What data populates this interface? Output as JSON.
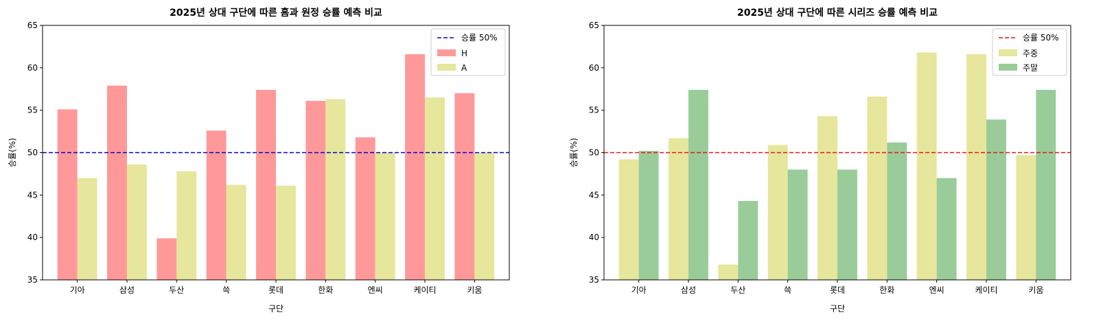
{
  "chart_data": [
    {
      "type": "bar",
      "title": "2025년 상대 구단에 따른 홈과 원정 승률 예측 비교",
      "xlabel": "구단",
      "ylabel": "승률(%)",
      "ylim": [
        35,
        65
      ],
      "yticks": [
        35,
        40,
        45,
        50,
        55,
        60,
        65
      ],
      "categories": [
        "기아",
        "삼성",
        "두산",
        "쓱",
        "롯데",
        "한화",
        "엔씨",
        "케이티",
        "키움"
      ],
      "series": [
        {
          "name": "H",
          "color": "#ff9999",
          "values": [
            55.1,
            57.9,
            39.9,
            52.6,
            57.4,
            56.1,
            51.8,
            61.6,
            57.0
          ]
        },
        {
          "name": "A",
          "color": "#e6e69c",
          "values": [
            47.0,
            48.6,
            47.8,
            46.2,
            46.1,
            56.3,
            50.0,
            56.5,
            50.0
          ]
        }
      ],
      "reference_line": {
        "label": "승률 50%",
        "value": 50,
        "color": "#0000cc",
        "style": "dashed"
      },
      "legend": "top-right",
      "grid": false
    },
    {
      "type": "bar",
      "title": "2025년 상대 구단에 따른 시리즈 승률 예측 비교",
      "xlabel": "구단",
      "ylabel": "승률(%)",
      "ylim": [
        35,
        65
      ],
      "yticks": [
        35,
        40,
        45,
        50,
        55,
        60,
        65
      ],
      "categories": [
        "기아",
        "삼성",
        "두산",
        "쓱",
        "롯데",
        "한화",
        "엔씨",
        "케이티",
        "키움"
      ],
      "series": [
        {
          "name": "주중",
          "color": "#e6e69c",
          "values": [
            49.2,
            51.7,
            36.8,
            50.9,
            54.3,
            56.6,
            61.8,
            61.6,
            49.7
          ]
        },
        {
          "name": "주말",
          "color": "#99cc99",
          "values": [
            50.2,
            57.4,
            44.3,
            48.0,
            48.0,
            51.2,
            47.0,
            53.9,
            57.4
          ]
        }
      ],
      "reference_line": {
        "label": "승률 50%",
        "value": 50,
        "color": "#ee1111",
        "style": "dashed"
      },
      "legend": "top-right",
      "grid": false
    }
  ]
}
